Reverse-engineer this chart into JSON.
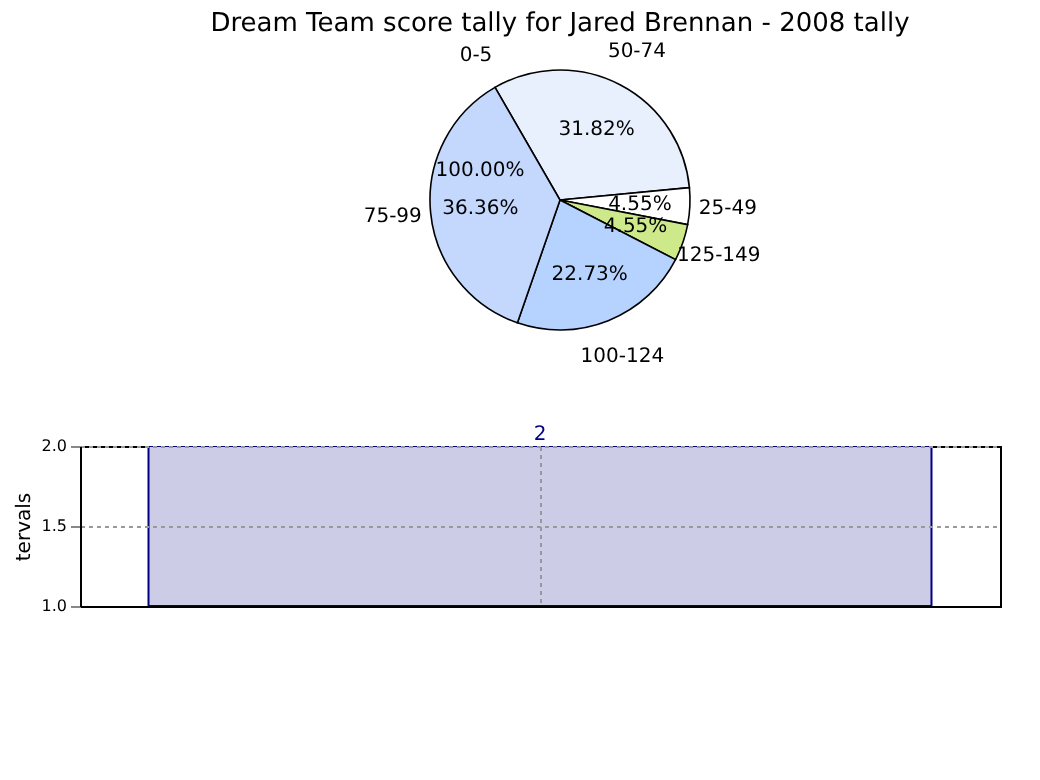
{
  "chart_data": [
    {
      "type": "pie",
      "title": "Dream Team score tally for Jared Brennan - 2008 tally",
      "categories": [
        "50-74",
        "25-49",
        "125-149",
        "100-124",
        "75-99",
        "0-5"
      ],
      "values": [
        31.82,
        4.55,
        4.55,
        22.73,
        36.36,
        0
      ],
      "colors": [
        "#e8f0fe",
        "#ffffff",
        "#cde98a",
        "#b5d3fe",
        "#c4d8fe",
        "#c4d8fe"
      ],
      "value_labels": [
        "31.82%",
        "4.55%",
        "4.55%",
        "22.73%",
        "36.36%",
        null
      ],
      "annotations": [
        "100.00%"
      ]
    },
    {
      "type": "bar",
      "categories": [
        null
      ],
      "values": [
        2
      ],
      "color": "#cccce6",
      "ylabel": "tervals",
      "ylim": [
        1,
        2
      ],
      "yticks": [
        {
          "value": 1,
          "label": "1.0"
        },
        {
          "value": 1.5,
          "label": "1.5"
        },
        {
          "value": 2,
          "label": "2.0"
        }
      ],
      "grid": true,
      "data_labels": true,
      "tick_labels": "y"
    }
  ]
}
